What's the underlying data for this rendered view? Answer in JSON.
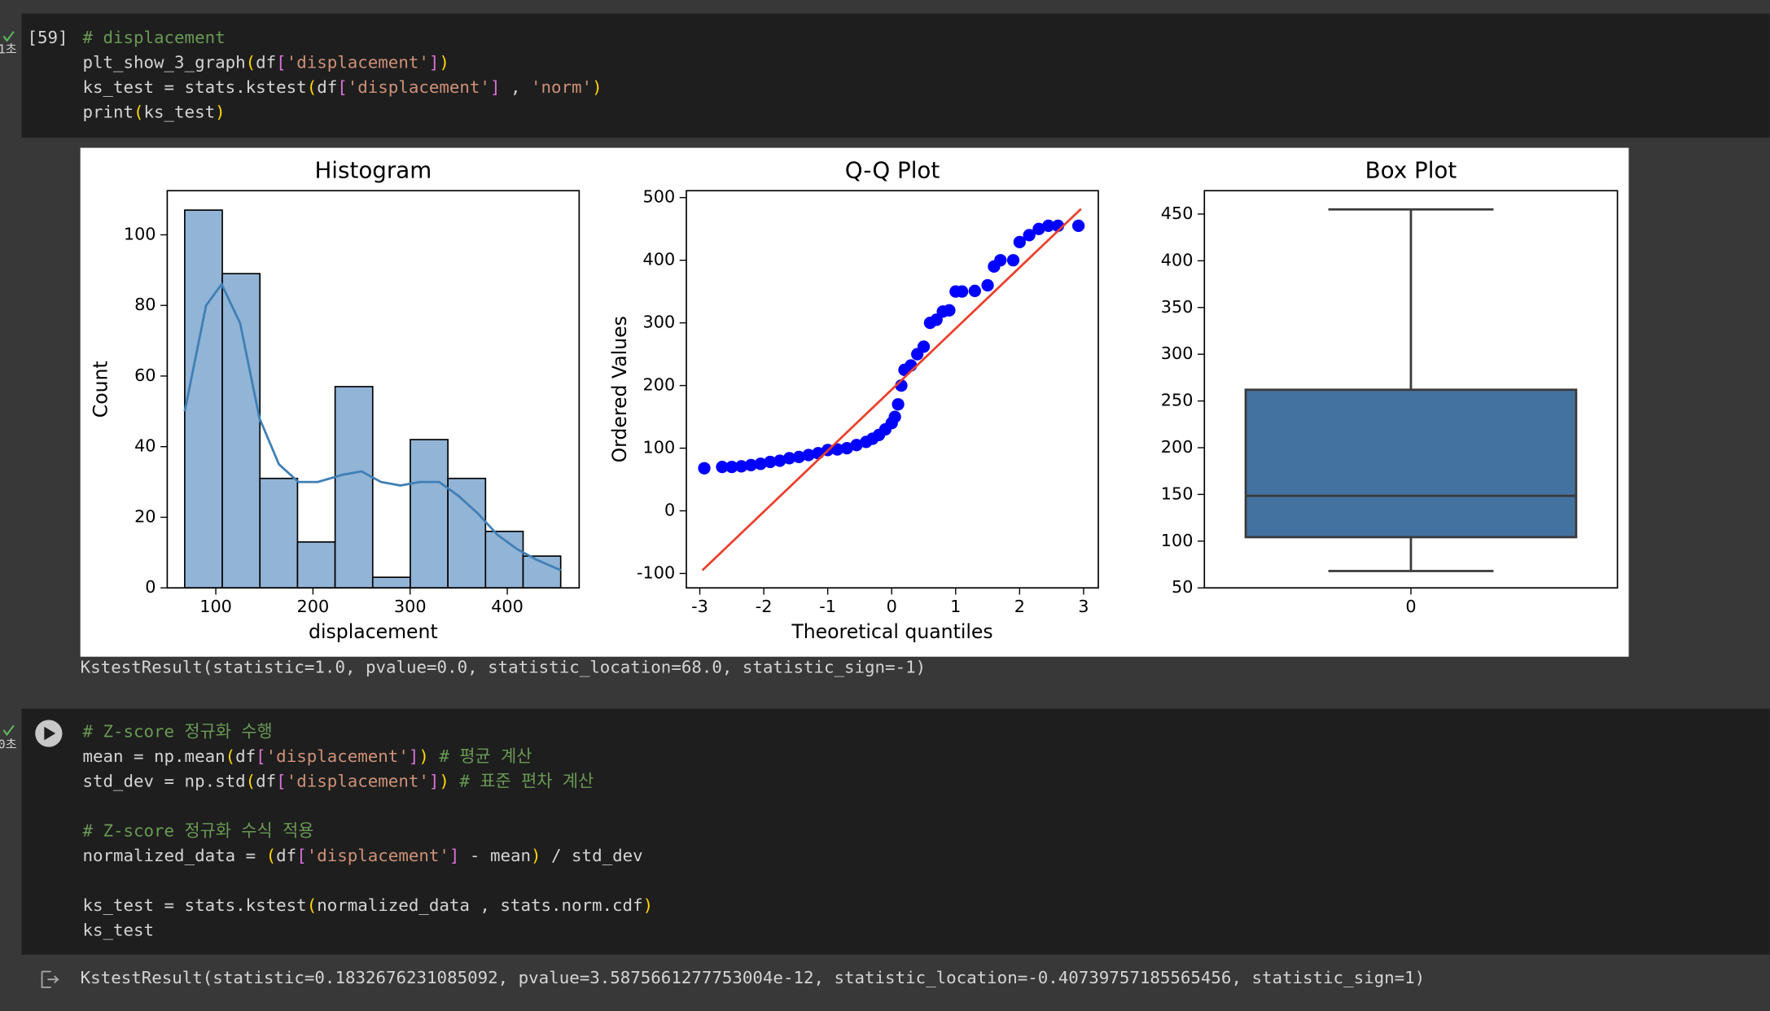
{
  "notebook": {
    "cells": [
      {
        "status": "1초",
        "exec_count": "[59]",
        "code": [
          [
            "# displacement",
            "plt_show_3_graph(df['displacement'])",
            "ks_test = stats.kstest(df['displacement'] , 'norm')",
            "print(ks_test)"
          ]
        ],
        "output_text": "KstestResult(statistic=1.0, pvalue=0.0, statistic_location=68.0, statistic_sign=-1)"
      },
      {
        "status": "0초",
        "code": [
          [
            "# Z-score 정규화 수행",
            "mean = np.mean(df['displacement'])       # 평균 계산",
            "std_dev = np.std(df['displacement'])    # 표준 편차 계산"
          ],
          [
            "# Z-score 정규화 수식 적용",
            "normalized_data = (df['displacement'] - mean) / std_dev"
          ],
          [
            "ks_test = stats.kstest(normalized_data , stats.norm.cdf)",
            "ks_test"
          ]
        ],
        "output_text": "KstestResult(statistic=0.1832676231085092, pvalue=3.5875661277753004e-12, statistic_location=-0.40739757185565456, statistic_sign=1)"
      }
    ]
  },
  "chart_data": [
    {
      "type": "histogram",
      "title": "Histogram",
      "xlabel": "displacement",
      "ylabel": "Count",
      "bins": [
        68,
        106.7,
        145.4,
        184.1,
        222.8,
        261.5,
        300.2,
        338.9,
        377.6,
        416.3,
        455
      ],
      "values": [
        107,
        89,
        31,
        13,
        57,
        3,
        42,
        31,
        16,
        9
      ],
      "color": "#92b4d6",
      "kde": {
        "x": [
          68,
          90,
          106,
          125,
          145,
          165,
          185,
          205,
          230,
          250,
          270,
          290,
          310,
          330,
          350,
          370,
          390,
          410,
          430,
          455
        ],
        "y": [
          50,
          80,
          86,
          75,
          48,
          35,
          30,
          30,
          32,
          33,
          30,
          29,
          30,
          30,
          26,
          21,
          15,
          11,
          8,
          5
        ],
        "color": "#3f7fb5"
      },
      "xlim": [
        50,
        474
      ],
      "ylim": [
        0,
        112.5
      ],
      "xticks": [
        100,
        200,
        300,
        400
      ],
      "yticks": [
        0,
        20,
        40,
        60,
        80,
        100
      ]
    },
    {
      "type": "scatter",
      "title": "Q-Q Plot",
      "xlabel": "Theoretical quantiles",
      "ylabel": "Ordered Values",
      "x": [
        -2.93,
        -2.65,
        -2.5,
        -2.35,
        -2.2,
        -2.05,
        -1.9,
        -1.75,
        -1.6,
        -1.45,
        -1.3,
        -1.15,
        -1.0,
        -0.85,
        -0.7,
        -0.55,
        -0.4,
        -0.3,
        -0.2,
        -0.1,
        0.0,
        0.05,
        0.1,
        0.15,
        0.2,
        0.3,
        0.4,
        0.5,
        0.6,
        0.7,
        0.8,
        0.9,
        1.0,
        1.1,
        1.3,
        1.5,
        1.6,
        1.7,
        1.9,
        2.0,
        2.15,
        2.3,
        2.45,
        2.6,
        2.92
      ],
      "y": [
        68,
        70,
        70,
        71,
        73,
        75,
        78,
        80,
        84,
        86,
        89,
        92,
        97,
        98,
        100,
        105,
        110,
        115,
        121,
        130,
        140,
        150,
        170,
        200,
        225,
        232,
        250,
        262,
        300,
        305,
        318,
        320,
        350,
        350,
        351,
        360,
        390,
        400,
        400,
        429,
        440,
        450,
        455,
        455,
        455
      ],
      "color": "#0000ff",
      "fit_line": {
        "x": [
          -2.96,
          2.96
        ],
        "y": [
          -95,
          482
        ],
        "color": "#e8412e"
      },
      "xlim": [
        -3.21,
        3.23
      ],
      "ylim": [
        -123,
        511
      ],
      "xticks": [
        -3,
        -2,
        -1,
        0,
        1,
        2,
        3
      ],
      "yticks": [
        -100,
        0,
        100,
        200,
        300,
        400,
        500
      ]
    },
    {
      "type": "box",
      "title": "Box Plot",
      "categories": [
        "0"
      ],
      "min": 68,
      "q1": 104.25,
      "median": 148.5,
      "q3": 262,
      "max": 455,
      "color": "#4472a0",
      "ylim": [
        50,
        475
      ],
      "yticks": [
        50,
        100,
        150,
        200,
        250,
        300,
        350,
        400,
        450
      ]
    }
  ]
}
